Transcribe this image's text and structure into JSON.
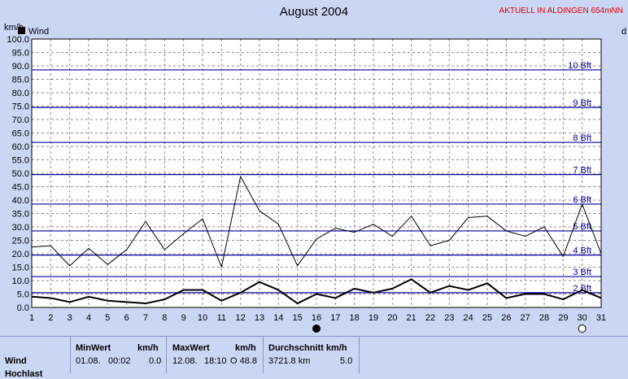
{
  "page": {
    "title": "August 2004",
    "station": "AKTUELL IN ALDINGEN 654mNN",
    "unit_label": "km/h",
    "right_label": "d"
  },
  "chart_data": {
    "type": "line",
    "title": "August 2004",
    "ylabel": "km/h",
    "ylim": [
      0,
      100
    ],
    "xlim": [
      1,
      31
    ],
    "yticks": [
      0,
      5,
      10,
      15,
      20,
      25,
      30,
      35,
      40,
      45,
      50,
      55,
      60,
      65,
      70,
      75,
      80,
      85,
      90,
      95,
      100
    ],
    "ytick_labels": [
      "0.0",
      "5.0",
      "10.0",
      "15.0",
      "20.0",
      "25.0",
      "30.0",
      "35.0",
      "40.0",
      "45.0",
      "50.0",
      "55.0",
      "60.0",
      "65.0",
      "70.0",
      "75.0",
      "80.0",
      "85.0",
      "90.0",
      "95.0",
      "100.0"
    ],
    "x": [
      1,
      2,
      3,
      4,
      5,
      6,
      7,
      8,
      9,
      10,
      11,
      12,
      13,
      14,
      15,
      16,
      17,
      18,
      19,
      20,
      21,
      22,
      23,
      24,
      25,
      26,
      27,
      28,
      29,
      30,
      31
    ],
    "legend": [
      {
        "name": "Wind",
        "color": "#000000"
      }
    ],
    "series": [
      {
        "name": "Wind",
        "kind": "max",
        "stroke": "#000000",
        "width": 1,
        "values": [
          22.5,
          23,
          15.5,
          22,
          16,
          21.5,
          32,
          21.5,
          27.5,
          33,
          15,
          48.8,
          36,
          31,
          15.5,
          25.5,
          29.5,
          28,
          31,
          26.5,
          34,
          23,
          25,
          33.5,
          34,
          28.5,
          26.5,
          30,
          19,
          38.5,
          20
        ]
      },
      {
        "name": "Wind",
        "kind": "avg",
        "stroke": "#000000",
        "width": 2,
        "values": [
          4,
          3.5,
          2,
          4,
          2.5,
          2,
          1.5,
          3,
          6.5,
          6.5,
          2.5,
          5.5,
          9.5,
          6.5,
          1.5,
          5,
          3.5,
          7,
          5.5,
          7,
          10.5,
          5.5,
          8,
          6.5,
          9,
          3.5,
          5,
          5,
          3,
          6.5,
          3.5
        ]
      }
    ],
    "beaufort": [
      {
        "label": "2 Bft",
        "value": 5.5
      },
      {
        "label": "3 Bft",
        "value": 11.5
      },
      {
        "label": "4 Bft",
        "value": 19.5
      },
      {
        "label": "5 Bft",
        "value": 28.5
      },
      {
        "label": "6 Bft",
        "value": 38.5
      },
      {
        "label": "7 Bft",
        "value": 49.5
      },
      {
        "label": "8 Bft",
        "value": 61.5
      },
      {
        "label": "9 Bft",
        "value": 74.5
      },
      {
        "label": "10 Bft",
        "value": 88.5
      }
    ],
    "moon_markers": [
      {
        "day": 16,
        "phase": "new"
      },
      {
        "day": 30,
        "phase": "full"
      }
    ],
    "grid": true,
    "legend_position": "top-left"
  },
  "footer": {
    "row1_label": "Wind",
    "row2_label": "Hochlast",
    "min": {
      "header": "MinWert",
      "unit": "km/h",
      "date": "01.08.",
      "time": "00:02",
      "value": "0.0"
    },
    "max": {
      "header": "MaxWert",
      "unit": "km/h",
      "date": "12.08.",
      "time": "18:10",
      "value": "O 48.8"
    },
    "avg": {
      "header": "Durchschnitt km/h",
      "distance": "3721.8 km",
      "value": "5.0"
    }
  }
}
